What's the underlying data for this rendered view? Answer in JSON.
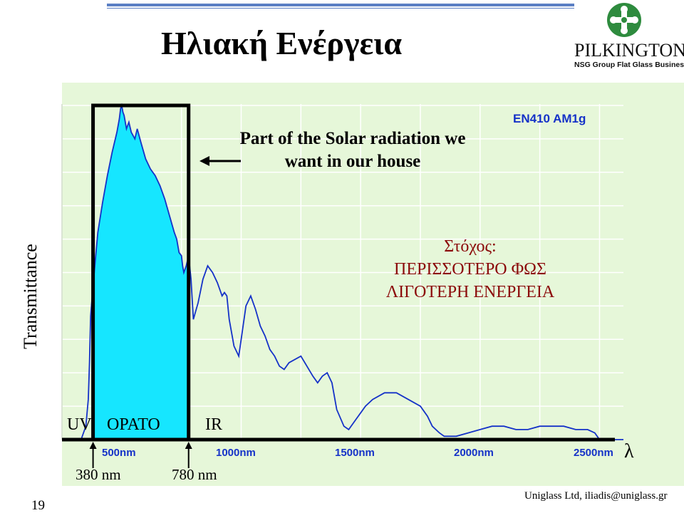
{
  "slide": {
    "title": "Ηλιακή Ενέργεια",
    "page_number": "19",
    "footer": "Uniglass Ltd, iliadis@uniglass.gr"
  },
  "logo": {
    "name": "PILKINGTON",
    "subtitle": "NSG Group Flat Glass Business",
    "color": "#2e8b3e"
  },
  "chart_data": {
    "type": "line",
    "title": "",
    "standard_label": "EN410 AM1g",
    "ylabel": "Transmittance",
    "xlabel": "λ",
    "x_unit": "nm",
    "xlim": [
      250,
      2600
    ],
    "ylim": [
      0,
      1
    ],
    "y_ticks_labeled": false,
    "grid": true,
    "x_ticks": [
      500,
      1000,
      1500,
      2000,
      2500
    ],
    "x_tick_labels": [
      "500nm",
      "1000nm",
      "1500nm",
      "2000nm",
      "2500nm"
    ],
    "highlight": {
      "from": 380,
      "to": 780,
      "fill": "#16e6ff",
      "outline": "#000000"
    },
    "series": [
      {
        "color": "#1532c8",
        "x": [
          250,
          330,
          350,
          360,
          365,
          370,
          380,
          390,
          400,
          420,
          440,
          460,
          480,
          490,
          495,
          500,
          505,
          510,
          520,
          530,
          540,
          555,
          565,
          580,
          600,
          620,
          640,
          660,
          680,
          700,
          720,
          730,
          740,
          750,
          755,
          760,
          770,
          780,
          790,
          800,
          820,
          840,
          860,
          880,
          900,
          920,
          930,
          940,
          950,
          970,
          990,
          1000,
          1020,
          1040,
          1060,
          1080,
          1100,
          1120,
          1140,
          1160,
          1180,
          1200,
          1250,
          1300,
          1320,
          1340,
          1360,
          1380,
          1400,
          1430,
          1450,
          1480,
          1520,
          1550,
          1600,
          1650,
          1700,
          1750,
          1780,
          1800,
          1830,
          1850,
          1900,
          1950,
          2000,
          2050,
          2100,
          2150,
          2200,
          2250,
          2300,
          2350,
          2400,
          2450,
          2480,
          2500,
          2600
        ],
        "values": [
          0,
          0,
          0.04,
          0.12,
          0.23,
          0.37,
          0.46,
          0.54,
          0.62,
          0.71,
          0.79,
          0.86,
          0.92,
          0.96,
          0.99,
          1.0,
          0.98,
          0.97,
          0.93,
          0.95,
          0.92,
          0.9,
          0.93,
          0.89,
          0.84,
          0.81,
          0.79,
          0.76,
          0.72,
          0.67,
          0.62,
          0.6,
          0.56,
          0.55,
          0.52,
          0.5,
          0.52,
          0.55,
          0.48,
          0.36,
          0.41,
          0.48,
          0.52,
          0.5,
          0.47,
          0.43,
          0.44,
          0.43,
          0.36,
          0.28,
          0.25,
          0.3,
          0.4,
          0.43,
          0.39,
          0.34,
          0.31,
          0.27,
          0.25,
          0.22,
          0.21,
          0.23,
          0.25,
          0.19,
          0.17,
          0.19,
          0.2,
          0.17,
          0.09,
          0.04,
          0.03,
          0.06,
          0.1,
          0.12,
          0.14,
          0.14,
          0.12,
          0.1,
          0.07,
          0.04,
          0.02,
          0.01,
          0.01,
          0.02,
          0.03,
          0.04,
          0.04,
          0.03,
          0.03,
          0.04,
          0.04,
          0.04,
          0.03,
          0.03,
          0.02,
          0.0,
          0.0
        ]
      }
    ],
    "annotations": {
      "visible_part": [
        "Part of the Solar radiation we",
        "want in our house"
      ],
      "goal": [
        "Στόχος:",
        "ΠΕΡΙΣΣΟΤΕΡΟ ΦΩΣ",
        "ΛΙΓΟΤΕΡΗ ΕΝΕΡΓΕΙΑ"
      ],
      "bands": [
        "UV",
        "ΟΡΑΤΟ",
        "IR"
      ],
      "markers": [
        {
          "x": 380,
          "label": "380 nm"
        },
        {
          "x": 780,
          "label": "780 nm"
        }
      ]
    }
  }
}
